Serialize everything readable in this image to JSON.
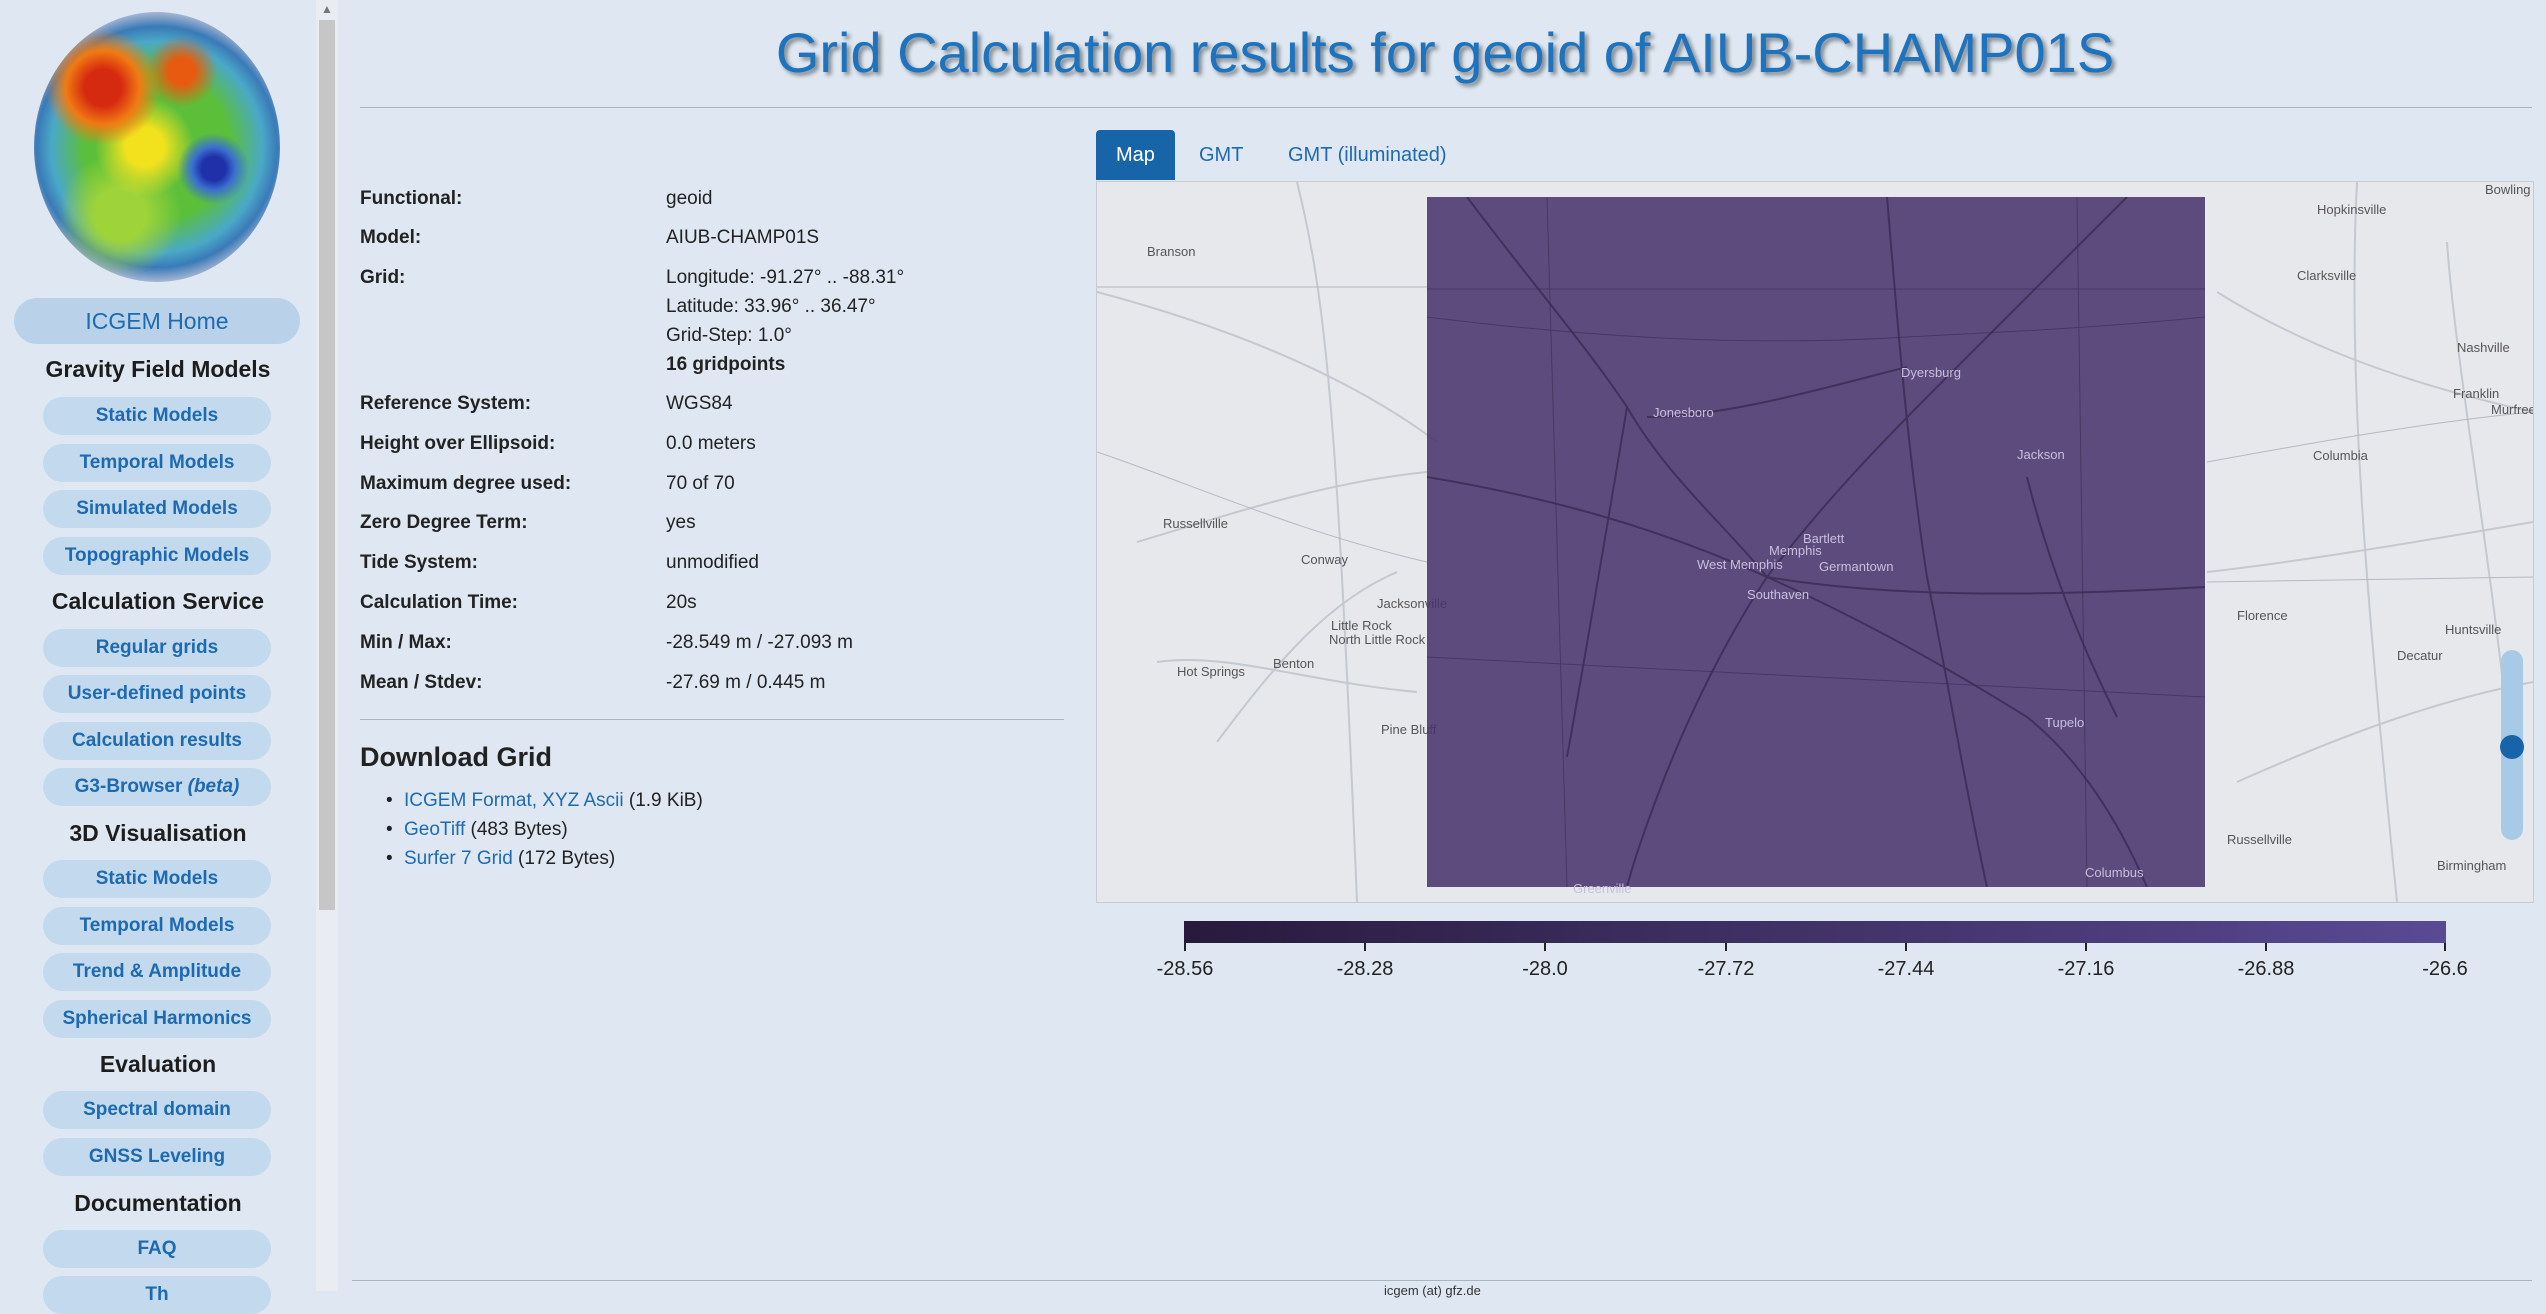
{
  "sidebar": {
    "home_label": "ICGEM Home",
    "sections": {
      "gravity": "Gravity Field Models",
      "calc": "Calculation Service",
      "vis": "3D Visualisation",
      "eval": "Evaluation",
      "docs": "Documentation"
    },
    "items": {
      "static_models": "Static Models",
      "temporal_models": "Temporal Models",
      "simulated_models": "Simulated Models",
      "topographic_models": "Topographic Models",
      "regular_grids": "Regular grids",
      "user_defined_points": "User-defined points",
      "calculation_results": "Calculation results",
      "g3_browser": "G3-Browser",
      "g3_beta": "(beta)",
      "vis_static": "Static Models",
      "vis_temporal": "Temporal Models",
      "trend": "Trend & Amplitude",
      "spherical": "Spherical Harmonics",
      "spectral": "Spectral domain",
      "gnss": "GNSS Leveling",
      "faq": "FAQ",
      "partial": "Th"
    }
  },
  "page": {
    "title": "Grid Calculation results for geoid of AIUB-CHAMP01S"
  },
  "info": {
    "functional": {
      "label": "Functional:",
      "value": "geoid"
    },
    "model": {
      "label": "Model:",
      "value": "AIUB-CHAMP01S"
    },
    "grid": {
      "label": "Grid:",
      "longitude": "Longitude: -91.27° .. -88.31°",
      "latitude": "Latitude: 33.96° .. 36.47°",
      "step": "Grid-Step: 1.0°",
      "points": "16 gridpoints"
    },
    "reference": {
      "label": "Reference System:",
      "value": "WGS84"
    },
    "height": {
      "label": "Height over Ellipsoid:",
      "value": "0.0 meters"
    },
    "degree": {
      "label": "Maximum degree used:",
      "value": "70 of 70"
    },
    "zero": {
      "label": "Zero Degree Term:",
      "value": "yes"
    },
    "tide": {
      "label": "Tide System:",
      "value": "unmodified"
    },
    "time": {
      "label": "Calculation Time:",
      "value": "20s"
    },
    "minmax": {
      "label": "Min / Max:",
      "value": "-28.549 m / -27.093 m"
    },
    "mean": {
      "label": "Mean / Stdev:",
      "value": "-27.69 m / 0.445 m"
    }
  },
  "download": {
    "title": "Download Grid",
    "items": [
      {
        "link": "ICGEM Format, XYZ Ascii",
        "size": "(1.9 KiB)"
      },
      {
        "link": "GeoTiff",
        "size": "(483 Bytes)"
      },
      {
        "link": "Surfer 7 Grid",
        "size": "(172 Bytes)"
      }
    ]
  },
  "tabs": [
    "Map",
    "GMT",
    "GMT (illuminated)"
  ],
  "map": {
    "places": {
      "branson": "Branson",
      "russellville": "Russellville",
      "conway": "Conway",
      "little_rock": "Little Rock",
      "north_little_rock": "North Little Rock",
      "hot_springs": "Hot Springs",
      "benton": "Benton",
      "jacksonville": "Jacksonville",
      "pine_bluff": "Pine Bluff",
      "greenville": "Greenville",
      "hopkinsville": "Hopkinsville",
      "clarksville": "Clarksville",
      "nashville": "Nashville",
      "franklin": "Franklin",
      "murfreesboro": "Murfree",
      "columbia": "Columbia",
      "florence": "Florence",
      "huntsville": "Huntsville",
      "decatur": "Decatur",
      "russellville_al": "Russellville",
      "birmingham": "Birmingham",
      "bowling": "Bowling",
      "jonesboro": "Jonesboro",
      "dyersburg": "Dyersburg",
      "jackson": "Jackson",
      "memphis": "Memphis",
      "bartlett": "Bartlett",
      "southaven": "Southaven",
      "tupelo": "Tupelo",
      "columbus": "Columbus",
      "west_memphis": "West Memphis",
      "germantown": "Germantown"
    },
    "colorbar_ticks": [
      "-28.56",
      "-28.28",
      "-28.0",
      "-27.72",
      "-27.44",
      "-27.16",
      "-26.88",
      "-26.6"
    ]
  },
  "footer": {
    "text": "icgem (at) gfz.de"
  }
}
